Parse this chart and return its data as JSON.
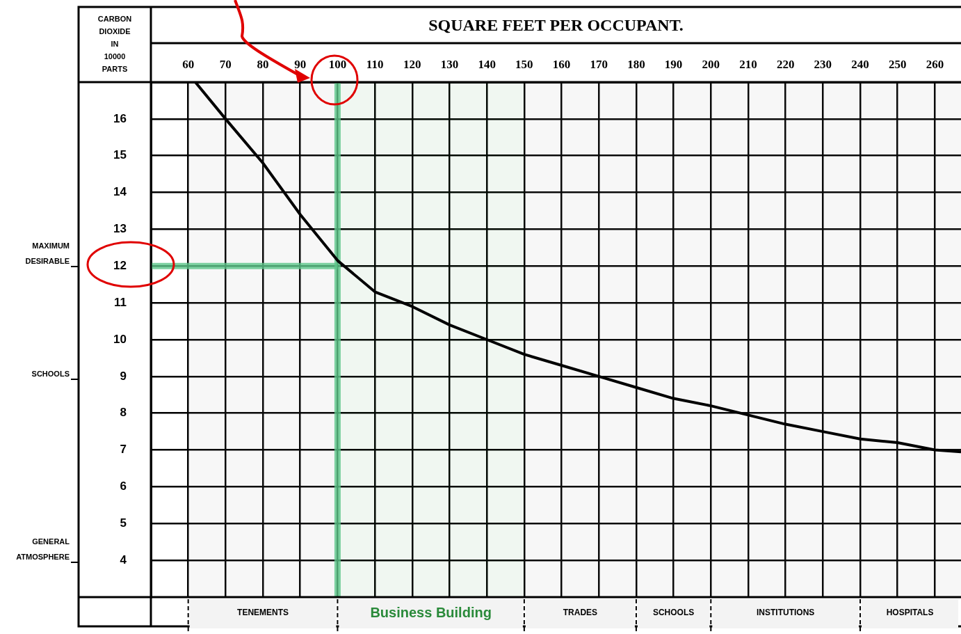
{
  "chart_data": {
    "type": "line",
    "title": "SQUARE FEET PER OCCUPANT.",
    "ylabel": "CARBON DIOXIDE IN 10000 PARTS",
    "xlim": [
      50,
      267
    ],
    "xticks": [
      60,
      70,
      80,
      90,
      100,
      110,
      120,
      130,
      140,
      150,
      160,
      170,
      180,
      190,
      200,
      210,
      220,
      230,
      240,
      250,
      260
    ],
    "ylim": [
      3,
      17
    ],
    "yticks": [
      4,
      5,
      6,
      7,
      8,
      9,
      10,
      11,
      12,
      13,
      14,
      15,
      16
    ],
    "grid": true,
    "legend": false,
    "marker": "none",
    "line_style": "solid",
    "series": [
      {
        "color": "#000000",
        "x": [
          61.9,
          70,
          80,
          90,
          100,
          110,
          120,
          130,
          140,
          150,
          160,
          170,
          180,
          190,
          200,
          210,
          220,
          230,
          240,
          250,
          260,
          267
        ],
        "values": [
          17,
          16,
          14.8,
          13.4,
          12.15,
          11.3,
          10.9,
          10.4,
          10,
          9.6,
          9.3,
          9,
          8.7,
          8.4,
          8.2,
          7.95,
          7.7,
          7.5,
          7.3,
          7.2,
          7,
          6.95
        ]
      },
      {
        "color": "#5cc58a",
        "x": [
          50,
          100
        ],
        "values": [
          12,
          12
        ]
      },
      {
        "color": "#5cc58a",
        "x": [
          100,
          100
        ],
        "values": [
          17,
          3
        ]
      }
    ],
    "annotations": [
      "MAXIMUM DESIRABLE",
      "SCHOOLS",
      "GENERAL ATMOSPHERE"
    ],
    "bands": [
      {
        "axis": "x",
        "from": 60,
        "to": 100,
        "label": "TENEMENTS"
      },
      {
        "axis": "x",
        "from": 100,
        "to": 150,
        "label": "Business Building",
        "color": "#2a8a3a"
      },
      {
        "axis": "x",
        "from": 150,
        "to": 180,
        "label": "TRADES"
      },
      {
        "axis": "x",
        "from": 180,
        "to": 200,
        "label": "SCHOOLS"
      },
      {
        "axis": "x",
        "from": 200,
        "to": 240,
        "label": "INSTITUTIONS"
      },
      {
        "axis": "x",
        "from": 240,
        "to": 267,
        "label": "HOSPITALS"
      }
    ]
  }
}
